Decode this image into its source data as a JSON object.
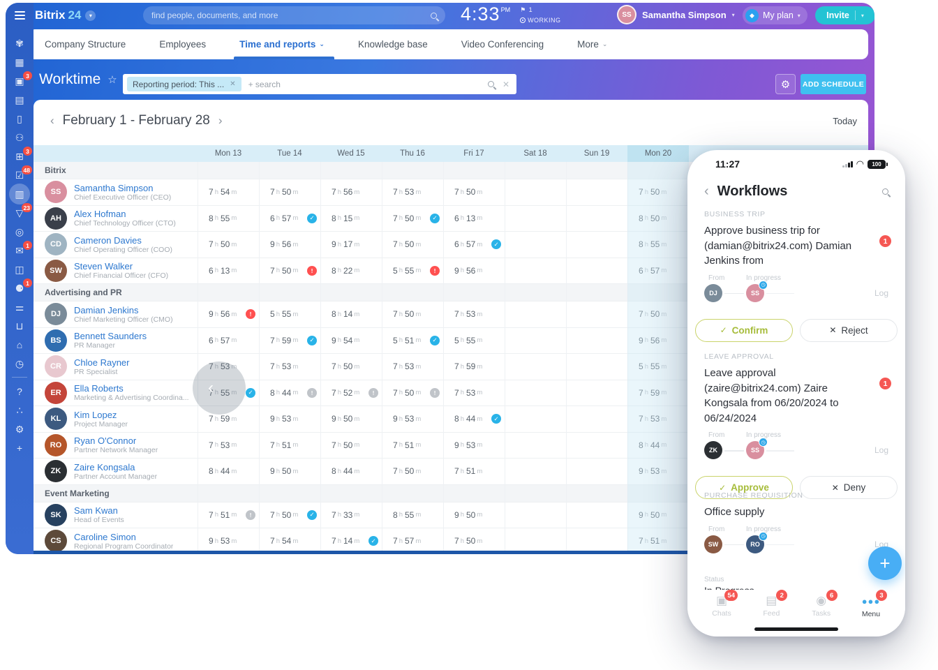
{
  "topbar": {
    "logo_bitrix": "Bitrix",
    "logo_24": "24",
    "search_placeholder": "find people, documents, and more",
    "time": "4:33",
    "time_period": "PM",
    "flag_count": "1",
    "working_label": "WORKING",
    "user_name": "Samantha Simpson",
    "plan_label": "My plan",
    "invite_label": "Invite"
  },
  "nav": {
    "items": [
      {
        "label": "Company Structure",
        "active": false,
        "caret": false
      },
      {
        "label": "Employees",
        "active": false,
        "caret": false
      },
      {
        "label": "Time and reports",
        "active": true,
        "caret": true
      },
      {
        "label": "Knowledge base",
        "active": false,
        "caret": false
      },
      {
        "label": "Video Conferencing",
        "active": false,
        "caret": false
      },
      {
        "label": "More",
        "active": false,
        "caret": true
      }
    ]
  },
  "sidebar": {
    "items": [
      {
        "name": "live-feed",
        "glyph": "✾",
        "badge": "",
        "active": false
      },
      {
        "name": "tasks-board",
        "glyph": "▦",
        "badge": "",
        "active": false
      },
      {
        "name": "messenger",
        "glyph": "▣",
        "badge": "3",
        "active": false
      },
      {
        "name": "inbox",
        "glyph": "▤",
        "badge": "",
        "active": false
      },
      {
        "name": "documents",
        "glyph": "▯",
        "badge": "",
        "active": false
      },
      {
        "name": "employees",
        "glyph": "⚇",
        "badge": "",
        "active": false
      },
      {
        "name": "calendar",
        "glyph": "⊞",
        "badge": "3",
        "active": false
      },
      {
        "name": "tasks",
        "glyph": "☑",
        "badge": "48",
        "active": false
      },
      {
        "name": "worktime",
        "glyph": "▥",
        "badge": "",
        "active": true
      },
      {
        "name": "crm-funnel",
        "glyph": "▽",
        "badge": "23",
        "active": false
      },
      {
        "name": "marketing-target",
        "glyph": "◎",
        "badge": "",
        "active": false
      },
      {
        "name": "mail",
        "glyph": "✉",
        "badge": "1",
        "active": false
      },
      {
        "name": "drive",
        "glyph": "◫",
        "badge": "",
        "active": false
      },
      {
        "name": "automation",
        "glyph": "⚈",
        "badge": "1",
        "active": false
      },
      {
        "name": "settings-sliders",
        "glyph": "⚌",
        "badge": "",
        "active": false
      },
      {
        "name": "market-cart",
        "glyph": "⊔",
        "badge": "",
        "active": false
      },
      {
        "name": "store",
        "glyph": "⌂",
        "badge": "",
        "active": false
      },
      {
        "name": "time-clock",
        "glyph": "◷",
        "badge": "",
        "active": false
      },
      {
        "name": "divider",
        "glyph": "",
        "badge": "",
        "active": false
      },
      {
        "name": "help",
        "glyph": "?",
        "badge": "",
        "active": false
      },
      {
        "name": "network",
        "glyph": "∴",
        "badge": "",
        "active": false
      },
      {
        "name": "settings-gear",
        "glyph": "⚙",
        "badge": "",
        "active": false
      },
      {
        "name": "add",
        "glyph": "+",
        "badge": "",
        "active": false
      }
    ]
  },
  "page": {
    "title": "Worktime",
    "filter_chip": "Reporting period: This ...",
    "filter_placeholder": "+ search",
    "add_schedule_label": "ADD SCHEDULE"
  },
  "calendar": {
    "range_label": "February 1 - February 28",
    "today_label": "Today",
    "days": [
      "Mon 13",
      "Tue 14",
      "Wed 15",
      "Thu 16",
      "Fri 17",
      "Sat 18",
      "Sun 19",
      "Mon 20"
    ],
    "highlight_day_index": 7
  },
  "worktime_table": {
    "groups": [
      {
        "name": "Bitrix",
        "rows": [
          {
            "name": "Samantha Simpson",
            "title": "Chief Executive Officer (CEO)",
            "initials": "SS",
            "color": "#d98f9f",
            "cells": [
              {
                "h": "7",
                "m": "54"
              },
              {
                "h": "7",
                "m": "50"
              },
              {
                "h": "7",
                "m": "56"
              },
              {
                "h": "7",
                "m": "53"
              },
              {
                "h": "7",
                "m": "50"
              },
              null,
              null,
              {
                "h": "7",
                "m": "50"
              }
            ]
          },
          {
            "name": "Alex Hofman",
            "title": "Chief Technology Officer (CTO)",
            "initials": "AH",
            "color": "#3a3f4a",
            "cells": [
              {
                "h": "8",
                "m": "55"
              },
              {
                "h": "6",
                "m": "57",
                "icon": "check"
              },
              {
                "h": "8",
                "m": "15"
              },
              {
                "h": "7",
                "m": "50",
                "icon": "check"
              },
              {
                "h": "6",
                "m": "13"
              },
              null,
              null,
              {
                "h": "8",
                "m": "50"
              }
            ]
          },
          {
            "name": "Cameron Davies",
            "title": "Chief Operating Officer (COO)",
            "initials": "CD",
            "color": "#9fb4c2",
            "cells": [
              {
                "h": "7",
                "m": "50"
              },
              {
                "h": "9",
                "m": "56"
              },
              {
                "h": "9",
                "m": "17"
              },
              {
                "h": "7",
                "m": "50"
              },
              {
                "h": "6",
                "m": "57",
                "icon": "check"
              },
              null,
              null,
              {
                "h": "8",
                "m": "55"
              }
            ]
          },
          {
            "name": "Steven Walker",
            "title": "Chief Financial Officer (CFO)",
            "initials": "SW",
            "color": "#8a5a44",
            "cells": [
              {
                "h": "6",
                "m": "13"
              },
              {
                "h": "7",
                "m": "50",
                "icon": "alert"
              },
              {
                "h": "8",
                "m": "22"
              },
              {
                "h": "5",
                "m": "55",
                "icon": "alert"
              },
              {
                "h": "9",
                "m": "56"
              },
              null,
              null,
              {
                "h": "6",
                "m": "57"
              }
            ]
          }
        ]
      },
      {
        "name": "Advertising and PR",
        "rows": [
          {
            "name": "Damian Jenkins",
            "title": "Chief Marketing Officer (CMO)",
            "initials": "DJ",
            "color": "#7a8b99",
            "cells": [
              {
                "h": "9",
                "m": "56",
                "icon": "alert"
              },
              {
                "h": "5",
                "m": "55"
              },
              {
                "h": "8",
                "m": "14"
              },
              {
                "h": "7",
                "m": "50"
              },
              {
                "h": "7",
                "m": "53"
              },
              null,
              null,
              {
                "h": "7",
                "m": "50"
              }
            ]
          },
          {
            "name": "Bennett Saunders",
            "title": "PR Manager",
            "initials": "BS",
            "color": "#2f6db0",
            "cells": [
              {
                "h": "6",
                "m": "57"
              },
              {
                "h": "7",
                "m": "59",
                "icon": "check"
              },
              {
                "h": "9",
                "m": "54"
              },
              {
                "h": "5",
                "m": "51",
                "icon": "check"
              },
              {
                "h": "5",
                "m": "55"
              },
              null,
              null,
              {
                "h": "9",
                "m": "56"
              }
            ]
          },
          {
            "name": "Chloe Rayner",
            "title": "PR Specialist",
            "initials": "CR",
            "color": "#e8c8cf",
            "cells": [
              {
                "h": "7",
                "m": "53"
              },
              {
                "h": "7",
                "m": "53"
              },
              {
                "h": "7",
                "m": "50"
              },
              {
                "h": "7",
                "m": "53"
              },
              {
                "h": "7",
                "m": "59"
              },
              null,
              null,
              {
                "h": "5",
                "m": "55"
              }
            ]
          },
          {
            "name": "Ella Roberts",
            "title": "Marketing & Advertising Coordina...",
            "initials": "ER",
            "color": "#c4453a",
            "cells": [
              {
                "h": "7",
                "m": "55",
                "icon": "check"
              },
              {
                "h": "8",
                "m": "44",
                "icon": "info"
              },
              {
                "h": "7",
                "m": "52",
                "icon": "info"
              },
              {
                "h": "7",
                "m": "50",
                "icon": "info"
              },
              {
                "h": "7",
                "m": "53"
              },
              null,
              null,
              {
                "h": "7",
                "m": "59"
              }
            ]
          },
          {
            "name": "Kim Lopez",
            "title": "Project Manager",
            "initials": "KL",
            "color": "#3d5a80",
            "cells": [
              {
                "h": "7",
                "m": "59"
              },
              {
                "h": "9",
                "m": "53"
              },
              {
                "h": "9",
                "m": "50"
              },
              {
                "h": "9",
                "m": "53"
              },
              {
                "h": "8",
                "m": "44",
                "icon": "check"
              },
              null,
              null,
              {
                "h": "7",
                "m": "53"
              }
            ]
          },
          {
            "name": "Ryan O'Connor",
            "title": "Partner Network Manager",
            "initials": "RO",
            "color": "#b5562a",
            "cells": [
              {
                "h": "7",
                "m": "53"
              },
              {
                "h": "7",
                "m": "51"
              },
              {
                "h": "7",
                "m": "50"
              },
              {
                "h": "7",
                "m": "51"
              },
              {
                "h": "9",
                "m": "53"
              },
              null,
              null,
              {
                "h": "8",
                "m": "44"
              }
            ]
          },
          {
            "name": "Zaire Kongsala",
            "title": "Partner Account Manager",
            "initials": "ZK",
            "color": "#2b2f33",
            "cells": [
              {
                "h": "8",
                "m": "44"
              },
              {
                "h": "9",
                "m": "50"
              },
              {
                "h": "8",
                "m": "44"
              },
              {
                "h": "7",
                "m": "50"
              },
              {
                "h": "7",
                "m": "51"
              },
              null,
              null,
              {
                "h": "9",
                "m": "53"
              }
            ]
          }
        ]
      },
      {
        "name": "Event Marketing",
        "rows": [
          {
            "name": "Sam Kwan",
            "title": "Head of Events",
            "initials": "SK",
            "color": "#27415f",
            "cells": [
              {
                "h": "7",
                "m": "51",
                "icon": "info"
              },
              {
                "h": "7",
                "m": "50",
                "icon": "check"
              },
              {
                "h": "7",
                "m": "33"
              },
              {
                "h": "8",
                "m": "55"
              },
              {
                "h": "9",
                "m": "50"
              },
              null,
              null,
              {
                "h": "9",
                "m": "50"
              }
            ]
          },
          {
            "name": "Caroline Simon",
            "title": "Regional Program Coordinator",
            "initials": "CS",
            "color": "#5d4a3a",
            "cells": [
              {
                "h": "9",
                "m": "53"
              },
              {
                "h": "7",
                "m": "54"
              },
              {
                "h": "7",
                "m": "14",
                "icon": "check"
              },
              {
                "h": "7",
                "m": "57"
              },
              {
                "h": "7",
                "m": "50"
              },
              null,
              null,
              {
                "h": "7",
                "m": "51"
              }
            ]
          }
        ]
      }
    ],
    "hour_unit": "h",
    "minute_unit": "m"
  },
  "phone": {
    "status_time": "11:27",
    "battery": "100",
    "header_title": "Workflows",
    "cards": [
      {
        "section": "BUSINESS TRIP",
        "title_lines": [
          "Approve business trip for",
          "(damian@bitrix24.com) Damian Jenkins from"
        ],
        "badge": "1",
        "from_label": "From",
        "progress_label": "In progress",
        "log_label": "Log",
        "from_initials": "DJ",
        "from_color": "#7a8b99",
        "progress_initials": "SS",
        "progress_color": "#d98f9f",
        "primary": "Confirm",
        "secondary": "Reject"
      },
      {
        "section": "LEAVE APPROVAL",
        "title_lines": [
          "Leave approval (zaire@bitrix24.com) Zaire",
          "Kongsala from 06/20/2024 to 06/24/2024"
        ],
        "badge": "1",
        "from_label": "From",
        "progress_label": "In progress",
        "log_label": "Log",
        "from_initials": "ZK",
        "from_color": "#2b2f33",
        "progress_initials": "SS",
        "progress_color": "#d98f9f",
        "primary": "Approve",
        "secondary": "Deny"
      },
      {
        "section": "PURCHASE REQUISITION",
        "title_lines": [
          "Office supply"
        ],
        "badge": "",
        "from_label": "From",
        "progress_label": "In progress",
        "log_label": "Log",
        "from_initials": "SW",
        "from_color": "#8a5a44",
        "progress_initials": "RO",
        "progress_color": "#3d5a80",
        "primary": "",
        "secondary": "",
        "status_label": "Status",
        "status_value": "In Progress"
      }
    ],
    "tabbar": [
      {
        "label": "Chats",
        "badge": "54",
        "icon": "chats",
        "active": false
      },
      {
        "label": "Feed",
        "badge": "2",
        "icon": "feed",
        "active": false
      },
      {
        "label": "Tasks",
        "badge": "6",
        "icon": "tasks",
        "active": false
      },
      {
        "label": "Menu",
        "badge": "3",
        "icon": "menu",
        "active": true
      }
    ]
  }
}
